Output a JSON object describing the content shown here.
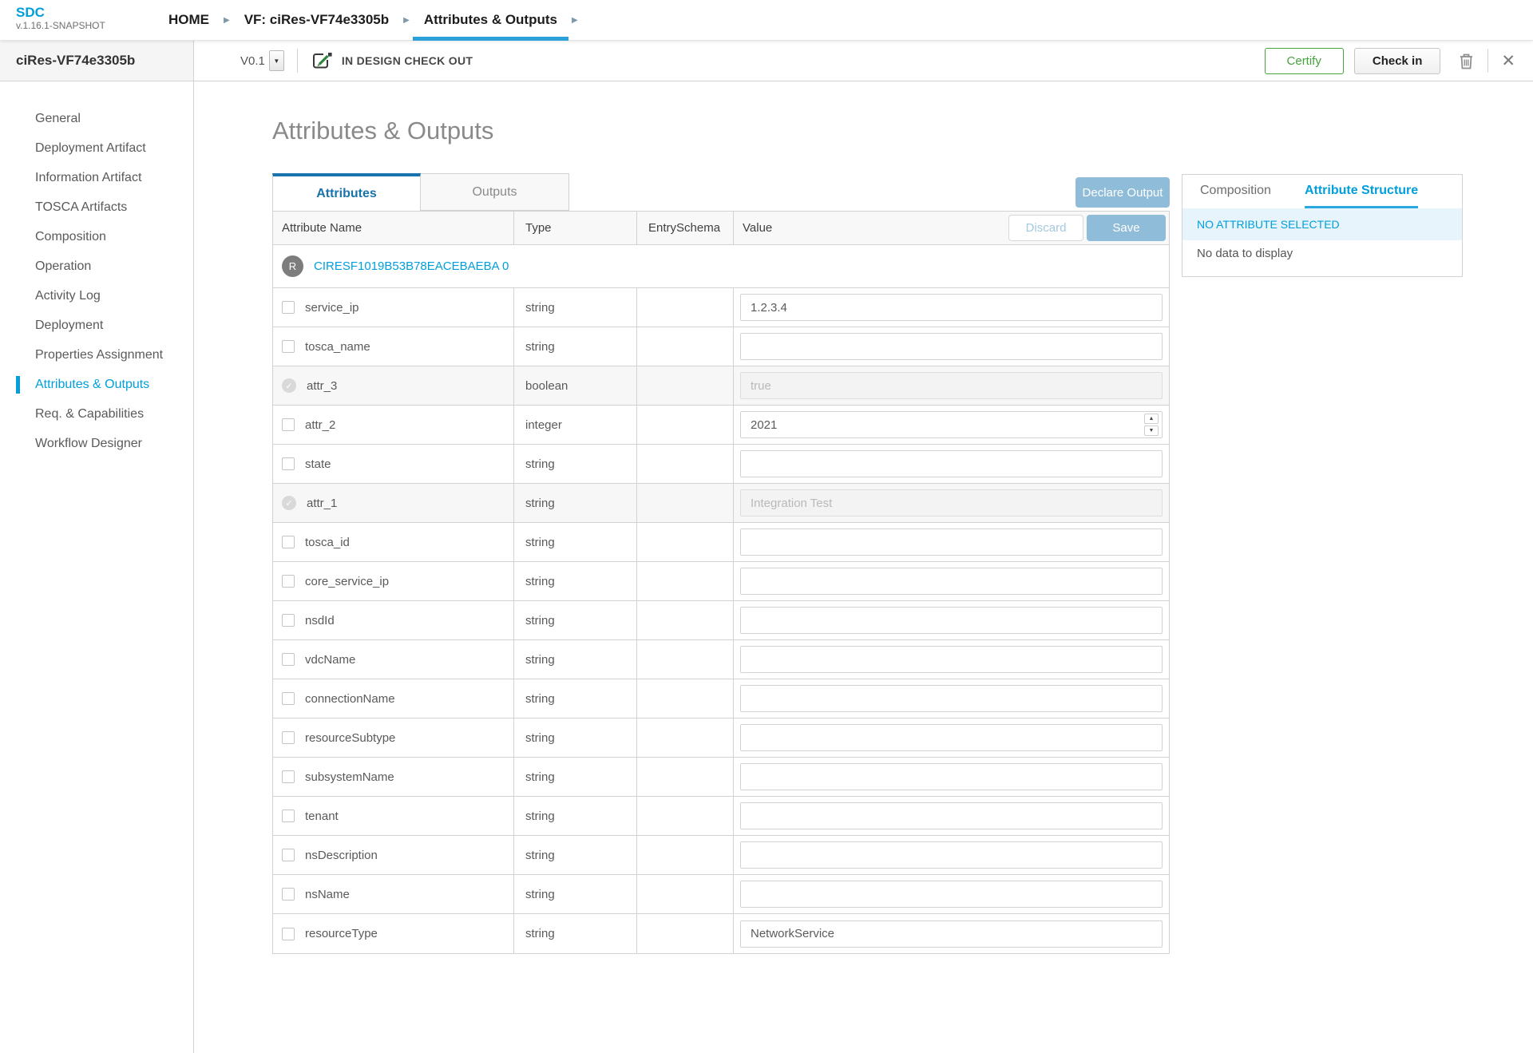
{
  "brand": {
    "name": "SDC",
    "version": "v.1.16.1-SNAPSHOT"
  },
  "breadcrumb": {
    "items": [
      {
        "label": "HOME",
        "active": false
      },
      {
        "label": "VF: ciRes-VF74e3305b",
        "active": false
      },
      {
        "label": "Attributes & Outputs",
        "active": true
      }
    ]
  },
  "workspace_header": {
    "entity_name": "ciRes-VF74e3305b",
    "version": "V0.1",
    "status": "IN DESIGN CHECK OUT",
    "certify_label": "Certify",
    "checkin_label": "Check in"
  },
  "sidebar": {
    "items": [
      {
        "label": "General",
        "active": false
      },
      {
        "label": "Deployment Artifact",
        "active": false
      },
      {
        "label": "Information Artifact",
        "active": false
      },
      {
        "label": "TOSCA Artifacts",
        "active": false
      },
      {
        "label": "Composition",
        "active": false
      },
      {
        "label": "Operation",
        "active": false
      },
      {
        "label": "Activity Log",
        "active": false
      },
      {
        "label": "Deployment",
        "active": false
      },
      {
        "label": "Properties Assignment",
        "active": false
      },
      {
        "label": "Attributes & Outputs",
        "active": true
      },
      {
        "label": "Req. & Capabilities",
        "active": false
      },
      {
        "label": "Workflow Designer",
        "active": false
      }
    ]
  },
  "main": {
    "title": "Attributes & Outputs",
    "tabs": [
      {
        "label": "Attributes",
        "active": true
      },
      {
        "label": "Outputs",
        "active": false
      }
    ],
    "declare_output_label": "Declare Output",
    "table": {
      "columns": [
        "Attribute Name",
        "Type",
        "EntrySchema",
        "Value"
      ],
      "discard_label": "Discard",
      "save_label": "Save",
      "group": {
        "avatar": "R",
        "label": "CIRESF1019B53B78EACEBAEBA 0"
      },
      "rows": [
        {
          "name": "service_ip",
          "type": "string",
          "value": "1.2.3.4",
          "control": "text",
          "disabled": false
        },
        {
          "name": "tosca_name",
          "type": "string",
          "value": "",
          "control": "text",
          "disabled": false
        },
        {
          "name": "attr_3",
          "type": "boolean",
          "value": "true",
          "control": "text",
          "disabled": true
        },
        {
          "name": "attr_2",
          "type": "integer",
          "value": "2021",
          "control": "number",
          "disabled": false
        },
        {
          "name": "state",
          "type": "string",
          "value": "",
          "control": "text",
          "disabled": false
        },
        {
          "name": "attr_1",
          "type": "string",
          "value": "Integration Test",
          "control": "text",
          "disabled": true
        },
        {
          "name": "tosca_id",
          "type": "string",
          "value": "",
          "control": "text",
          "disabled": false
        },
        {
          "name": "core_service_ip",
          "type": "string",
          "value": "",
          "control": "text",
          "disabled": false
        },
        {
          "name": "nsdId",
          "type": "string",
          "value": "",
          "control": "text",
          "disabled": false
        },
        {
          "name": "vdcName",
          "type": "string",
          "value": "",
          "control": "text",
          "disabled": false
        },
        {
          "name": "connectionName",
          "type": "string",
          "value": "",
          "control": "text",
          "disabled": false
        },
        {
          "name": "resourceSubtype",
          "type": "string",
          "value": "",
          "control": "text",
          "disabled": false
        },
        {
          "name": "subsystemName",
          "type": "string",
          "value": "",
          "control": "text",
          "disabled": false
        },
        {
          "name": "tenant",
          "type": "string",
          "value": "",
          "control": "text",
          "disabled": false
        },
        {
          "name": "nsDescription",
          "type": "string",
          "value": "",
          "control": "text",
          "disabled": false
        },
        {
          "name": "nsName",
          "type": "string",
          "value": "",
          "control": "text",
          "disabled": false
        },
        {
          "name": "resourceType",
          "type": "string",
          "value": "NetworkService",
          "control": "text",
          "disabled": false
        }
      ]
    }
  },
  "side_panel": {
    "tabs": [
      {
        "label": "Composition",
        "active": false
      },
      {
        "label": "Attribute Structure",
        "active": true
      }
    ],
    "banner": "NO ATTRIBUTE SELECTED",
    "empty_message": "No data to display"
  },
  "icons": {
    "version_dropdown": "caret-down",
    "checkout": "pencil-square",
    "trash": "trash-can",
    "close": "x",
    "breadcrumb_separator": "arrow-right"
  },
  "colors": {
    "brand_blue": "#009fdb",
    "tab_blue": "#1873ac",
    "crumb_underline": "#2ba0d9",
    "steel_button": "#8fbcd9",
    "certify_green": "#46a33c",
    "banner_bg": "#e7f4fb",
    "border": "#d2d2d2"
  }
}
